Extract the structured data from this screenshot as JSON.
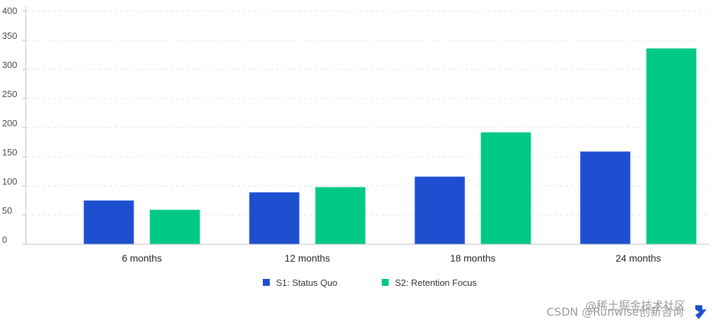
{
  "chart_data": {
    "type": "bar",
    "title": "",
    "xlabel": "",
    "ylabel": "",
    "categories": [
      "6 months",
      "12 months",
      "18 months",
      "24 months"
    ],
    "series": [
      {
        "name": "S1: Status Quo",
        "color": "#1f4fd1",
        "values": [
          75,
          89,
          116,
          159
        ]
      },
      {
        "name": "S2: Retention Focus",
        "color": "#00c985",
        "values": [
          59,
          98,
          192,
          336
        ]
      }
    ],
    "ylim": [
      0,
      400
    ],
    "yticks": [
      0,
      50,
      100,
      150,
      200,
      250,
      300,
      350,
      400
    ],
    "grid": true,
    "legend_position": "bottom-center"
  },
  "watermark": {
    "text": "CSDN @Runwise创新咨询",
    "overlay": "@稀土掘金技术社区"
  }
}
